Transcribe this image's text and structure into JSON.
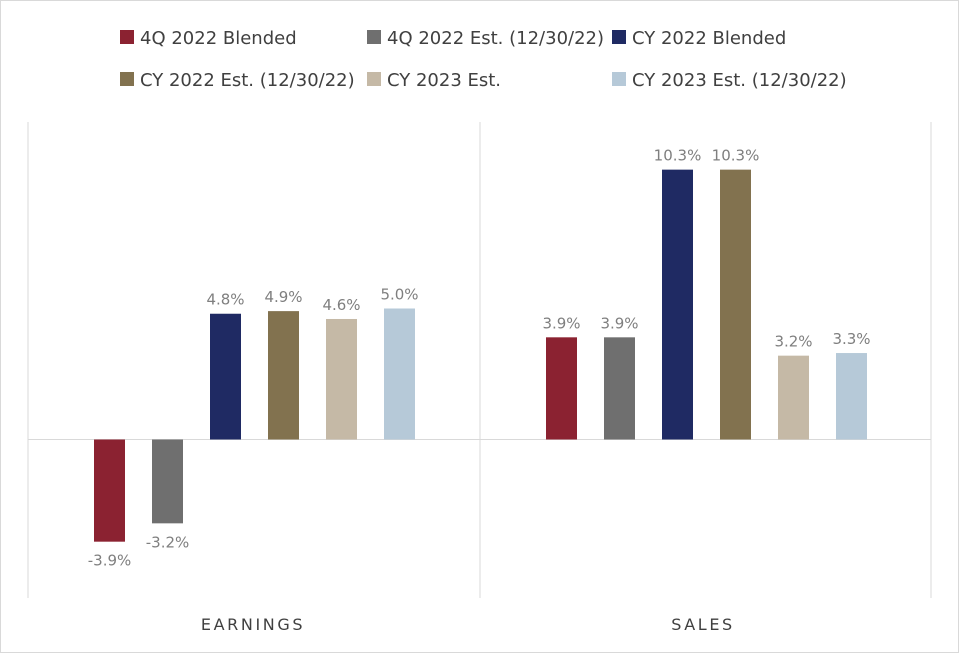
{
  "chart_data": {
    "type": "bar",
    "categories": [
      "EARNINGS",
      "SALES"
    ],
    "series": [
      {
        "name": "4Q 2022 Blended",
        "color": "#8b2231",
        "values": [
          -3.9,
          3.9
        ],
        "labels": [
          "-3.9%",
          "3.9%"
        ]
      },
      {
        "name": "4Q 2022 Est. (12/30/22)",
        "color": "#6f6f6f",
        "values": [
          -3.2,
          3.9
        ],
        "labels": [
          "-3.2%",
          "3.9%"
        ]
      },
      {
        "name": "CY 2022 Blended",
        "color": "#1f2a63",
        "values": [
          4.8,
          10.3
        ],
        "labels": [
          "4.8%",
          "10.3%"
        ]
      },
      {
        "name": "CY 2022 Est. (12/30/22)",
        "color": "#82724f",
        "values": [
          4.9,
          10.3
        ],
        "labels": [
          "4.9%",
          "10.3%"
        ]
      },
      {
        "name": "CY 2023 Est.",
        "color": "#c5b9a6",
        "values": [
          4.6,
          3.2
        ],
        "labels": [
          "4.6%",
          "3.2%"
        ]
      },
      {
        "name": "CY 2023 Est. (12/30/22)",
        "color": "#b6c9d8",
        "values": [
          5.0,
          3.3
        ],
        "labels": [
          "5.0%",
          "3.3%"
        ]
      }
    ],
    "ylim": [
      -6.0,
      12.0
    ],
    "legend_position": "top",
    "grid": false,
    "data_labels": true
  }
}
